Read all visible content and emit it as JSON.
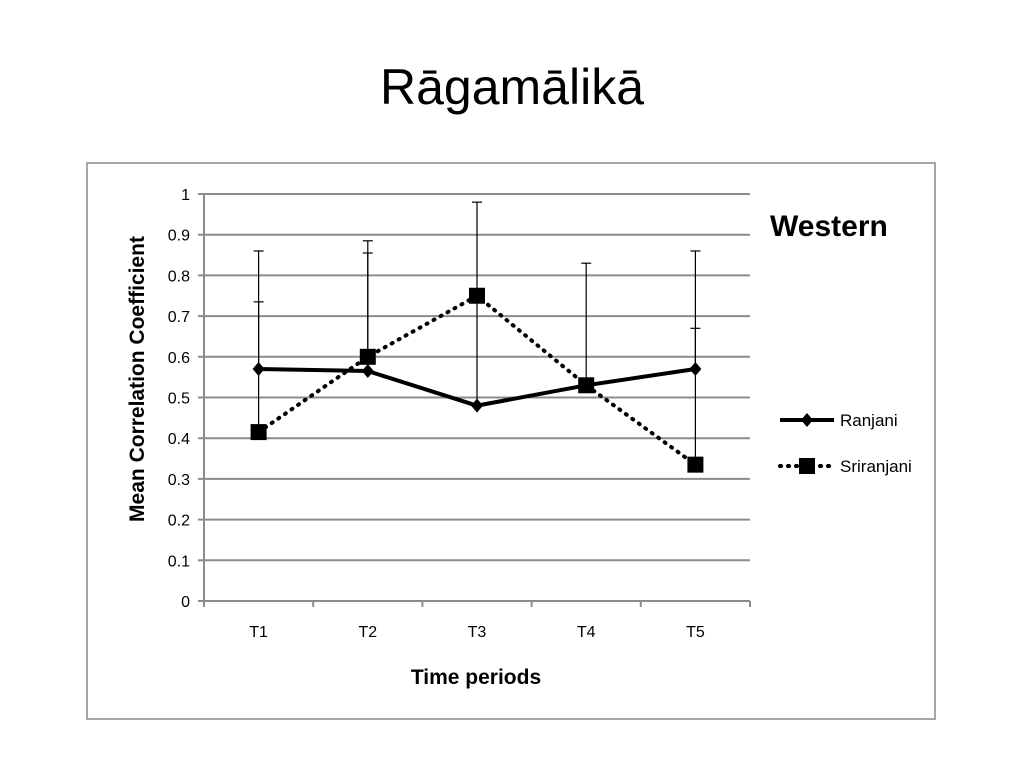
{
  "slide": {
    "title": "Rāgamālikā"
  },
  "chart_data": {
    "type": "line",
    "title": "",
    "panel_label": "Western",
    "xlabel": "Time periods",
    "ylabel": "Mean Correlation Coefficient",
    "categories": [
      "T1",
      "T2",
      "T3",
      "T4",
      "T5"
    ],
    "ylim": [
      0,
      1
    ],
    "yticks": [
      0,
      0.1,
      0.2,
      0.3,
      0.4,
      0.5,
      0.6,
      0.7,
      0.8,
      0.9,
      1
    ],
    "grid": true,
    "legend_position": "right",
    "series": [
      {
        "name": "Ranjani",
        "values": [
          0.57,
          0.565,
          0.48,
          0.53,
          0.57
        ],
        "error_upper": [
          0.86,
          0.855,
          0.745,
          0.83,
          0.86
        ],
        "marker": "diamond",
        "line_style": "solid",
        "color": "#000000"
      },
      {
        "name": "Sriranjani",
        "values": [
          0.415,
          0.6,
          0.75,
          0.53,
          0.335
        ],
        "error_upper": [
          0.735,
          0.885,
          0.98,
          0.53,
          0.67
        ],
        "marker": "square",
        "line_style": "dotted",
        "color": "#000000"
      }
    ]
  }
}
